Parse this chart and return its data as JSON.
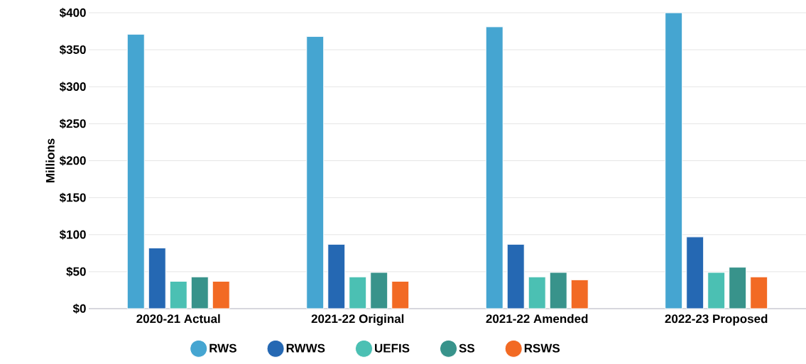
{
  "chart_data": {
    "type": "bar",
    "ylabel": "Millions",
    "categories": [
      "2020-21 Actual",
      "2021-22 Original",
      "2021-22 Amended",
      "2022-23 Proposed"
    ],
    "series": [
      {
        "name": "RWS",
        "color": "#45a5d1",
        "values": [
          371,
          368,
          381,
          400
        ]
      },
      {
        "name": "RWWS",
        "color": "#2568b3",
        "values": [
          82,
          87,
          87,
          97
        ]
      },
      {
        "name": "UEFIS",
        "color": "#4bc0b3",
        "values": [
          37,
          43,
          43,
          49
        ]
      },
      {
        "name": "SS",
        "color": "#38938b",
        "values": [
          43,
          49,
          49,
          56
        ]
      },
      {
        "name": "RSWS",
        "color": "#f26a24",
        "values": [
          37,
          37,
          39,
          43
        ]
      }
    ],
    "ylim": [
      0,
      400
    ],
    "yticks": [
      {
        "value": 0,
        "label": "$0"
      },
      {
        "value": 50,
        "label": "$50"
      },
      {
        "value": 100,
        "label": "$100"
      },
      {
        "value": 150,
        "label": "$150"
      },
      {
        "value": 200,
        "label": "$200"
      },
      {
        "value": 250,
        "label": "$250"
      },
      {
        "value": 300,
        "label": "$300"
      },
      {
        "value": 350,
        "label": "$350"
      },
      {
        "value": 400,
        "label": "$400"
      }
    ],
    "grid": "y",
    "legend": "bottom"
  }
}
